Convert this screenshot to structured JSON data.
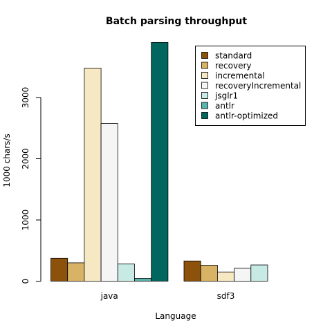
{
  "chart_data": {
    "type": "bar",
    "title": "Batch parsing throughput",
    "xlabel": "Language",
    "ylabel": "1000 chars/s",
    "categories": [
      "java",
      "sdf3"
    ],
    "ylim": [
      0,
      3920
    ],
    "yticks": [
      0,
      1000,
      2000,
      3000
    ],
    "grid": false,
    "legend_position": "top-right",
    "series": [
      {
        "name": "standard",
        "color": "#8c510a",
        "values": [
          375,
          330
        ]
      },
      {
        "name": "recovery",
        "color": "#d8b365",
        "values": [
          300,
          260
        ]
      },
      {
        "name": "incremental",
        "color": "#f6e8c3",
        "values": [
          3480,
          150
        ]
      },
      {
        "name": "recoveryIncremental",
        "color": "#f5f5f5",
        "values": [
          2575,
          210
        ]
      },
      {
        "name": "jsglr1",
        "color": "#c7eae5",
        "values": [
          280,
          265
        ]
      },
      {
        "name": "antlr",
        "color": "#5ab4ac",
        "values": [
          45,
          null
        ]
      },
      {
        "name": "antlr-optimized",
        "color": "#01665e",
        "values": [
          3900,
          null
        ]
      }
    ]
  }
}
